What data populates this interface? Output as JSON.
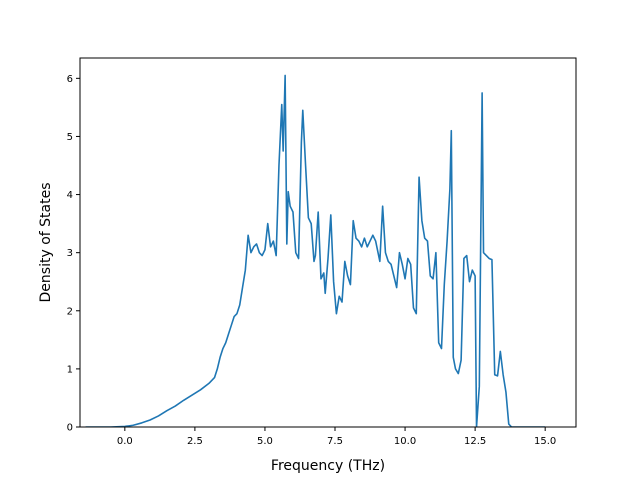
{
  "chart_data": {
    "type": "line",
    "title": "",
    "xlabel": "Frequency (THz)",
    "ylabel": "Density of States",
    "xlim": [
      -1.6,
      16.1
    ],
    "ylim": [
      0,
      6.35
    ],
    "xticks": [
      0.0,
      2.5,
      5.0,
      7.5,
      10.0,
      12.5,
      15.0
    ],
    "xtick_labels": [
      "0.0",
      "2.5",
      "5.0",
      "7.5",
      "10.0",
      "12.5",
      "15.0"
    ],
    "yticks": [
      0,
      1,
      2,
      3,
      4,
      5,
      6
    ],
    "ytick_labels": [
      "0",
      "1",
      "2",
      "3",
      "4",
      "5",
      "6"
    ],
    "grid": false,
    "legend": "none",
    "colors": {
      "line": "#1f77b4"
    },
    "series": [
      {
        "x": [
          -1.4,
          -0.5,
          0.0,
          0.3,
          0.6,
          0.9,
          1.2,
          1.5,
          1.8,
          2.1,
          2.4,
          2.7,
          3.0,
          3.2,
          3.3,
          3.4,
          3.5,
          3.6,
          3.7,
          3.8,
          3.9,
          4.0,
          4.1,
          4.2,
          4.3,
          4.4,
          4.5,
          4.6,
          4.7,
          4.8,
          4.9,
          5.0,
          5.1,
          5.2,
          5.3,
          5.4,
          5.5,
          5.6,
          5.65,
          5.72,
          5.78,
          5.83,
          5.9,
          6.0,
          6.1,
          6.2,
          6.3,
          6.35,
          6.45,
          6.55,
          6.65,
          6.75,
          6.8,
          6.9,
          7.0,
          7.1,
          7.15,
          7.25,
          7.35,
          7.45,
          7.55,
          7.65,
          7.75,
          7.85,
          7.95,
          8.05,
          8.15,
          8.25,
          8.35,
          8.45,
          8.55,
          8.65,
          8.75,
          8.85,
          8.95,
          9.1,
          9.2,
          9.3,
          9.4,
          9.5,
          9.6,
          9.7,
          9.8,
          9.9,
          10.0,
          10.1,
          10.2,
          10.3,
          10.4,
          10.5,
          10.6,
          10.7,
          10.8,
          10.9,
          11.0,
          11.1,
          11.2,
          11.3,
          11.4,
          11.5,
          11.6,
          11.65,
          11.72,
          11.8,
          11.9,
          12.0,
          12.1,
          12.2,
          12.3,
          12.4,
          12.5,
          12.55,
          12.65,
          12.75,
          12.8,
          12.9,
          13.0,
          13.1,
          13.2,
          13.3,
          13.4,
          13.5,
          13.6,
          13.7,
          13.8,
          14.0,
          15.0
        ],
        "y": [
          0.0,
          0.0,
          0.01,
          0.03,
          0.07,
          0.12,
          0.19,
          0.28,
          0.36,
          0.46,
          0.55,
          0.64,
          0.75,
          0.85,
          1.0,
          1.2,
          1.35,
          1.45,
          1.6,
          1.75,
          1.9,
          1.95,
          2.1,
          2.4,
          2.7,
          3.3,
          3.0,
          3.1,
          3.15,
          3.0,
          2.95,
          3.05,
          3.5,
          3.1,
          3.2,
          2.95,
          4.5,
          5.55,
          4.75,
          6.05,
          3.15,
          4.05,
          3.8,
          3.7,
          3.0,
          2.9,
          4.9,
          5.45,
          4.5,
          3.6,
          3.5,
          2.85,
          2.95,
          3.7,
          2.55,
          2.65,
          2.3,
          2.9,
          3.65,
          2.5,
          1.95,
          2.25,
          2.15,
          2.85,
          2.6,
          2.45,
          3.55,
          3.25,
          3.2,
          3.1,
          3.25,
          3.1,
          3.2,
          3.3,
          3.2,
          2.85,
          3.8,
          3.0,
          2.85,
          2.8,
          2.6,
          2.4,
          3.0,
          2.8,
          2.55,
          2.9,
          2.8,
          2.05,
          1.95,
          4.3,
          3.55,
          3.25,
          3.2,
          2.6,
          2.55,
          3.0,
          1.45,
          1.35,
          2.45,
          3.2,
          4.1,
          5.1,
          1.2,
          1.0,
          0.92,
          1.15,
          2.9,
          2.95,
          2.5,
          2.7,
          2.6,
          0.0,
          0.7,
          5.75,
          3.0,
          2.95,
          2.9,
          2.88,
          0.9,
          0.88,
          1.3,
          0.9,
          0.6,
          0.05,
          0.0,
          0.0,
          0.0
        ]
      }
    ]
  }
}
